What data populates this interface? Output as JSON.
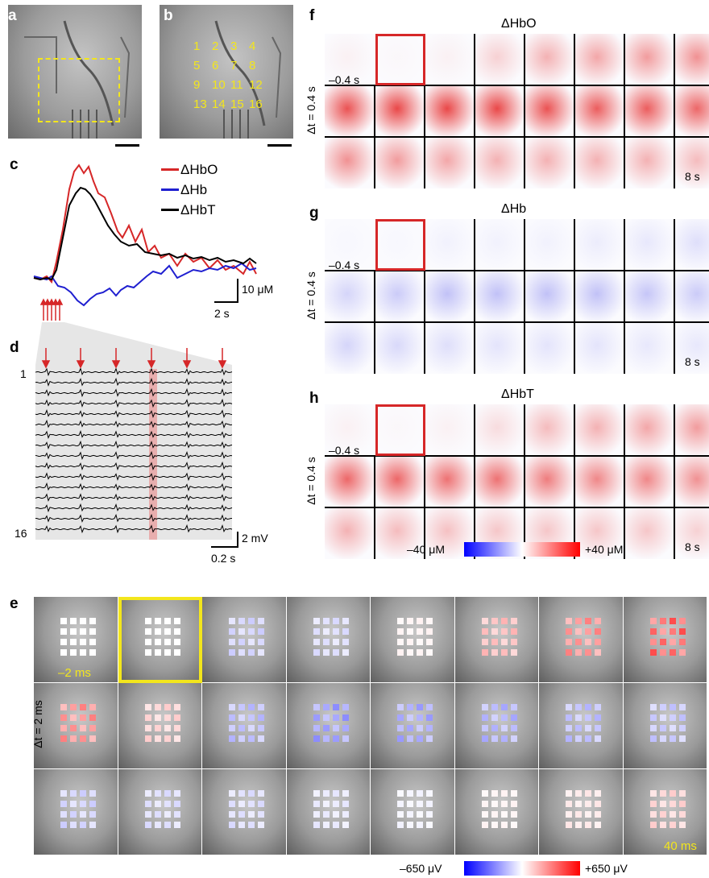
{
  "panel_labels": {
    "a": "a",
    "b": "b",
    "c": "c",
    "d": "d",
    "e": "e",
    "f": "f",
    "g": "g",
    "h": "h"
  },
  "panel_b": {
    "electrode_numbers": [
      "1",
      "2",
      "3",
      "4",
      "5",
      "6",
      "7",
      "8",
      "9",
      "10",
      "11",
      "12",
      "13",
      "14",
      "15",
      "16"
    ]
  },
  "panel_c": {
    "legend": [
      {
        "name": "ΔHbO",
        "color": "#d62728"
      },
      {
        "name": "ΔHb",
        "color": "#1f1fd0"
      },
      {
        "name": "ΔHbT",
        "color": "#000000"
      }
    ],
    "scale_y": "10 μM",
    "scale_x": "2 s"
  },
  "panel_d": {
    "first_channel": "1",
    "last_channel": "16",
    "scale_y": "2 mV",
    "scale_x": "0.2 s"
  },
  "maps": {
    "dt_label": "Δt = 0.4 s",
    "start_label": "–0.4 s",
    "end_label": "8 s",
    "titles": [
      "ΔHbO",
      "ΔHb",
      "ΔHbT"
    ],
    "colorbar_min": "–40 μM",
    "colorbar_max": "+40 μM"
  },
  "panel_e": {
    "dt_label": "Δt = 2 ms",
    "start_label": "–2 ms",
    "end_label": "40 ms",
    "colorbar_min": "–650 μV",
    "colorbar_max": "+650 μV"
  },
  "colors": {
    "red": "#d62728",
    "blue": "#1f1fd0",
    "yellow": "#f3e61c",
    "highlight": "#e05555"
  }
}
